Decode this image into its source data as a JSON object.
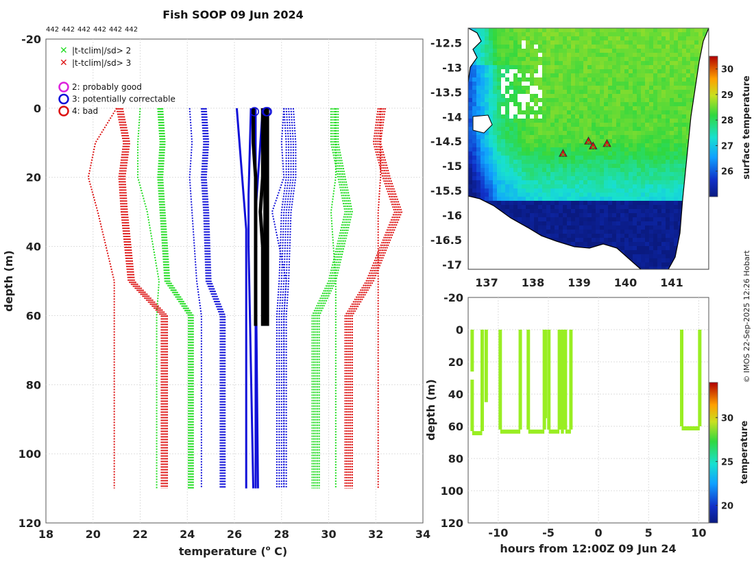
{
  "figure": {
    "title": "Fish SOOP 09 Jun 2024",
    "instrument_codes": [
      "442",
      "442",
      "442",
      "442",
      "442",
      "442"
    ],
    "credit": "© IMOS 22-Sep-2025 12:26 Hobart"
  },
  "colors": {
    "green": "#22dd22",
    "red": "#dd1111",
    "blue": "#1010d8",
    "black": "#000000",
    "magenta": "#dd22dd",
    "grid": "#dddddd",
    "profile_time": "#99ee22"
  },
  "chart_data": [
    {
      "type": "line",
      "name": "profile",
      "xlabel": "temperature (",
      "xlabel_sup": "o",
      "xlabel_tail": " C)",
      "ylabel": "depth (m)",
      "xlim": [
        18,
        34
      ],
      "ylim": [
        -20,
        120
      ],
      "xticks": [
        "18",
        "20",
        "22",
        "24",
        "26",
        "28",
        "30",
        "32",
        "34"
      ],
      "yticks": [
        "-20",
        "0",
        "20",
        "40",
        "60",
        "80",
        "100",
        "120"
      ],
      "legend": [
        {
          "marker": "x",
          "color": "green",
          "label": "|t-tclim|/sd> 2"
        },
        {
          "marker": "x",
          "color": "red",
          "label": "|t-tclim|/sd> 3"
        },
        {
          "marker": "o",
          "color": "magenta",
          "label": "2: probably good"
        },
        {
          "marker": "o",
          "color": "blue",
          "label": "3: potentially correctable"
        },
        {
          "marker": "o",
          "color": "red",
          "label": "4: bad"
        }
      ],
      "climatology_depths": [
        0,
        10,
        20,
        30,
        50,
        60,
        110
      ],
      "envelopes": [
        {
          "name": "clim -3sd",
          "color": "red",
          "temps": [
            21.0,
            21.3,
            21.1,
            21.2,
            21.5,
            22.9,
            22.9
          ],
          "shift": [
            0.0,
            0.25
          ]
        },
        {
          "name": "clim -2sd",
          "color": "green",
          "temps": [
            22.9,
            23.0,
            22.9,
            23.0,
            23.2,
            24.2,
            24.2
          ],
          "shift": [
            -0.15,
            0.05
          ]
        },
        {
          "name": "clim -1sd",
          "color": "blue",
          "temps": [
            24.8,
            24.9,
            24.8,
            24.9,
            25.0,
            25.6,
            25.6
          ],
          "shift": [
            -0.2,
            0.0
          ]
        },
        {
          "name": "clim +1sd",
          "color": "blue",
          "temps": [
            28.5,
            28.6,
            28.6,
            28.4,
            28.3,
            28.2,
            28.2
          ],
          "shift": [
            -0.4,
            0.0
          ]
        },
        {
          "name": "clim +2sd",
          "color": "green",
          "temps": [
            30.3,
            30.3,
            30.6,
            30.9,
            30.2,
            29.5,
            29.5
          ],
          "shift": [
            -0.2,
            0.1
          ]
        },
        {
          "name": "clim +3sd",
          "color": "red",
          "temps": [
            32.3,
            32.1,
            32.5,
            33.0,
            31.8,
            30.9,
            30.9
          ],
          "shift": [
            -0.2,
            0.1
          ]
        }
      ],
      "single_lines": [
        {
          "name": "min",
          "color": "red",
          "temps": [
            21.0,
            20.1,
            19.8,
            20.2,
            20.9,
            20.9,
            20.9
          ]
        },
        {
          "name": "min-green",
          "color": "green",
          "temps": [
            22.0,
            21.9,
            21.9,
            22.3,
            22.8,
            22.7,
            22.7
          ]
        },
        {
          "name": "min-blue",
          "color": "blue",
          "temps": [
            24.1,
            24.2,
            24.1,
            24.2,
            24.4,
            24.6,
            24.6
          ]
        },
        {
          "name": "max-blue",
          "color": "blue",
          "temps": [
            28.1,
            28.0,
            28.1,
            27.6,
            28.2,
            28.1,
            28.1
          ]
        },
        {
          "name": "max-green",
          "color": "green",
          "temps": [
            30.3,
            30.3,
            30.3,
            30.1,
            30.3,
            30.3,
            30.3
          ]
        },
        {
          "name": "max",
          "color": "red",
          "temps": [
            32.2,
            32.2,
            32.2,
            32.1,
            32.1,
            32.1,
            32.1
          ]
        }
      ],
      "mean_lines": [
        {
          "color": "blue",
          "depths": [
            0,
            35,
            45,
            110
          ],
          "temps": [
            26.1,
            26.5,
            26.5,
            26.5
          ]
        },
        {
          "color": "blue",
          "depths": [
            0,
            25,
            40,
            110
          ],
          "temps": [
            26.7,
            26.6,
            26.6,
            26.8
          ]
        },
        {
          "color": "blue",
          "depths": [
            0,
            20,
            40,
            110
          ],
          "temps": [
            26.9,
            26.9,
            26.9,
            27.0
          ]
        },
        {
          "color": "blue",
          "depths": [
            0,
            30,
            110
          ],
          "temps": [
            27.2,
            26.9,
            26.9
          ]
        }
      ],
      "observed_profiles": [
        {
          "depths": [
            0,
            10,
            20,
            30,
            40,
            50,
            63
          ],
          "temps": [
            26.8,
            26.8,
            26.9,
            26.9,
            26.9,
            26.9,
            26.9
          ]
        },
        {
          "depths": [
            0,
            10,
            20,
            30,
            40,
            50,
            63
          ],
          "temps": [
            27.2,
            27.2,
            27.2,
            27.1,
            27.2,
            27.2,
            27.2
          ]
        },
        {
          "depths": [
            0,
            10,
            20,
            30,
            40,
            50,
            63
          ],
          "temps": [
            27.3,
            27.3,
            27.3,
            27.3,
            27.3,
            27.3,
            27.3
          ]
        },
        {
          "depths": [
            0,
            10,
            20,
            30,
            40,
            50,
            63
          ],
          "temps": [
            27.4,
            27.4,
            27.4,
            27.4,
            27.4,
            27.4,
            27.4
          ]
        }
      ],
      "qc_circles": [
        {
          "temp": 26.85,
          "depth": 1,
          "color": "blue"
        },
        {
          "temp": 27.35,
          "depth": 1,
          "color": "blue"
        },
        {
          "temp": 27.4,
          "depth": 1,
          "color": "blue"
        }
      ]
    },
    {
      "type": "heatmap",
      "name": "map",
      "xlim": [
        136.6,
        141.8
      ],
      "ylim": [
        -17.1,
        -12.2
      ],
      "xticks": [
        "137",
        "138",
        "139",
        "140",
        "141"
      ],
      "yticks": [
        "-12.5",
        "-13",
        "-13.5",
        "-14",
        "-14.5",
        "-15",
        "-15.5",
        "-16",
        "-16.5",
        "-17"
      ],
      "colorbar_label": "surface temperature",
      "colorbar_range": [
        25.0,
        30.5
      ],
      "colorbar_ticks": [
        "26",
        "27",
        "28",
        "29",
        "30"
      ],
      "profile_locations": [
        {
          "lon": 139.2,
          "lat": -14.5
        },
        {
          "lon": 139.3,
          "lat": -14.6
        },
        {
          "lon": 139.6,
          "lat": -14.55
        },
        {
          "lon": 138.65,
          "lat": -14.75
        }
      ]
    },
    {
      "type": "scatter",
      "name": "time-depth",
      "xlabel": "hours from 12:00Z 09 Jun 24",
      "ylabel": "depth (m)",
      "xlim": [
        -13,
        11
      ],
      "ylim": [
        -20,
        120
      ],
      "xticks": [
        "-10",
        "-5",
        "0",
        "5",
        "10"
      ],
      "yticks": [
        "-20",
        "0",
        "20",
        "40",
        "60",
        "80",
        "100",
        "120"
      ],
      "colorbar_label": "temperature",
      "colorbar_range": [
        18,
        34
      ],
      "colorbar_ticks": [
        "20",
        "25",
        "30"
      ],
      "casts": [
        {
          "t_start": -12.6,
          "t_end": -11.6,
          "max_depth": 63,
          "gap": [
            26,
            31
          ]
        },
        {
          "t_start": -11.2,
          "t_end": -11.05,
          "max_depth": 45
        },
        {
          "t_start": -9.8,
          "t_end": -7.8,
          "max_depth": 62
        },
        {
          "t_start": -7.0,
          "t_end": -5.4,
          "max_depth": 62
        },
        {
          "t_start": -5.3,
          "t_end": -5.05,
          "max_depth": 55
        },
        {
          "t_start": -4.95,
          "t_end": -3.9,
          "max_depth": 62
        },
        {
          "t_start": -3.75,
          "t_end": -3.45,
          "max_depth": 62
        },
        {
          "t_start": -3.3,
          "t_end": -2.75,
          "max_depth": 62
        },
        {
          "t_start": 8.3,
          "t_end": 10.1,
          "max_depth": 60
        }
      ]
    }
  ]
}
